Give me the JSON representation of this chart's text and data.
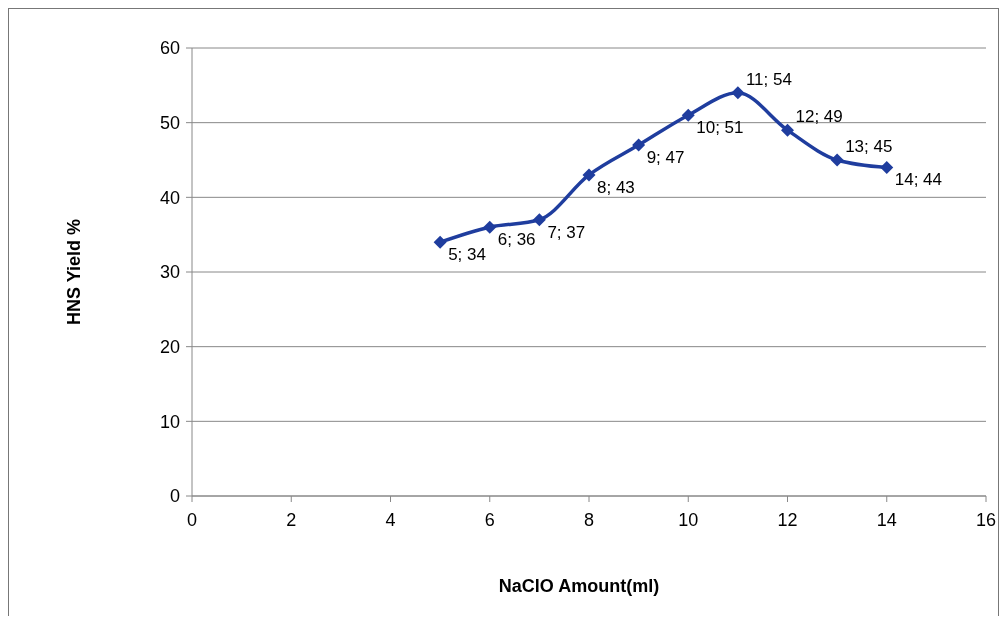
{
  "chart_data": {
    "type": "line",
    "xlabel": "NaClO Amount(ml)",
    "ylabel": "HNS Yield %",
    "x": [
      5,
      6,
      7,
      8,
      9,
      10,
      11,
      12,
      13,
      14
    ],
    "series": [
      {
        "color": "#1f3d9e",
        "values": [
          34,
          36,
          37,
          43,
          47,
          51,
          54,
          49,
          45,
          44
        ],
        "value_labels": [
          "5; 34",
          "6; 36",
          "7; 37",
          "8; 43",
          "9; 47",
          "10; 51",
          "11; 54",
          "12; 49",
          "13; 45",
          "14; 44"
        ]
      }
    ],
    "xlim": [
      0,
      16
    ],
    "xticks": [
      0,
      2,
      4,
      6,
      8,
      10,
      12,
      14,
      16
    ],
    "ylim": [
      0,
      60
    ],
    "yticks": [
      0,
      10,
      20,
      30,
      40,
      50,
      60
    ],
    "grid": "y",
    "marker": "diamond",
    "line_style": "solid"
  }
}
